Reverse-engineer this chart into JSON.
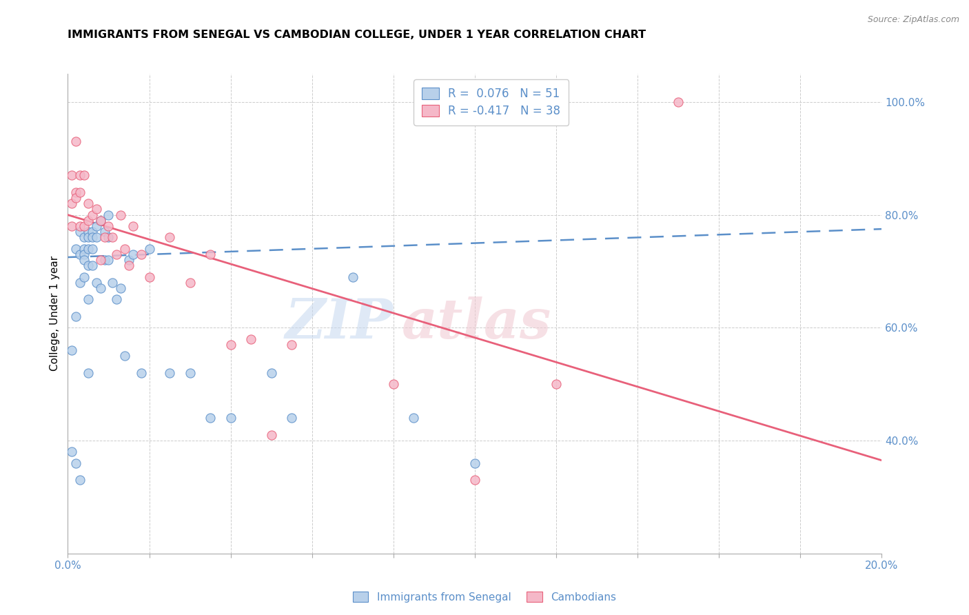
{
  "title": "IMMIGRANTS FROM SENEGAL VS CAMBODIAN COLLEGE, UNDER 1 YEAR CORRELATION CHART",
  "source": "Source: ZipAtlas.com",
  "ylabel": "College, Under 1 year",
  "xmin": 0.0,
  "xmax": 0.2,
  "ymin": 0.2,
  "ymax": 1.05,
  "yticks": [
    0.4,
    0.6,
    0.8,
    1.0
  ],
  "ytick_labels": [
    "40.0%",
    "60.0%",
    "80.0%",
    "100.0%"
  ],
  "watermark_zip": "ZIP",
  "watermark_atlas": "atlas",
  "blue_fill": "#b8d0ea",
  "blue_edge": "#5b8fc9",
  "pink_fill": "#f5b8c8",
  "pink_edge": "#e8607a",
  "blue_line": "#5b8fc9",
  "pink_line": "#e8607a",
  "text_color": "#5b8fc9",
  "senegal_x": [
    0.001,
    0.001,
    0.002,
    0.002,
    0.002,
    0.003,
    0.003,
    0.003,
    0.003,
    0.004,
    0.004,
    0.004,
    0.004,
    0.004,
    0.005,
    0.005,
    0.005,
    0.005,
    0.005,
    0.005,
    0.006,
    0.006,
    0.006,
    0.006,
    0.007,
    0.007,
    0.007,
    0.008,
    0.008,
    0.009,
    0.009,
    0.01,
    0.01,
    0.01,
    0.011,
    0.012,
    0.013,
    0.014,
    0.015,
    0.016,
    0.018,
    0.02,
    0.025,
    0.03,
    0.035,
    0.04,
    0.05,
    0.055,
    0.07,
    0.085,
    0.1
  ],
  "senegal_y": [
    0.56,
    0.38,
    0.62,
    0.74,
    0.36,
    0.77,
    0.73,
    0.68,
    0.33,
    0.76,
    0.74,
    0.73,
    0.72,
    0.69,
    0.77,
    0.76,
    0.74,
    0.71,
    0.65,
    0.52,
    0.77,
    0.76,
    0.74,
    0.71,
    0.78,
    0.76,
    0.68,
    0.79,
    0.67,
    0.77,
    0.72,
    0.8,
    0.76,
    0.72,
    0.68,
    0.65,
    0.67,
    0.55,
    0.72,
    0.73,
    0.52,
    0.74,
    0.52,
    0.52,
    0.44,
    0.44,
    0.52,
    0.44,
    0.69,
    0.44,
    0.36
  ],
  "cambodian_x": [
    0.001,
    0.001,
    0.001,
    0.002,
    0.002,
    0.002,
    0.003,
    0.003,
    0.003,
    0.004,
    0.004,
    0.005,
    0.005,
    0.006,
    0.007,
    0.008,
    0.008,
    0.009,
    0.01,
    0.011,
    0.012,
    0.013,
    0.014,
    0.015,
    0.016,
    0.018,
    0.02,
    0.025,
    0.03,
    0.035,
    0.04,
    0.045,
    0.05,
    0.055,
    0.08,
    0.1,
    0.12,
    0.15
  ],
  "cambodian_y": [
    0.78,
    0.87,
    0.82,
    0.93,
    0.84,
    0.83,
    0.87,
    0.84,
    0.78,
    0.87,
    0.78,
    0.82,
    0.79,
    0.8,
    0.81,
    0.79,
    0.72,
    0.76,
    0.78,
    0.76,
    0.73,
    0.8,
    0.74,
    0.71,
    0.78,
    0.73,
    0.69,
    0.76,
    0.68,
    0.73,
    0.57,
    0.58,
    0.41,
    0.57,
    0.5,
    0.33,
    0.5,
    1.0
  ],
  "senegal_line_x": [
    0.0,
    0.2
  ],
  "senegal_line_y": [
    0.725,
    0.775
  ],
  "cambodian_line_x": [
    0.0,
    0.2
  ],
  "cambodian_line_y": [
    0.8,
    0.365
  ]
}
